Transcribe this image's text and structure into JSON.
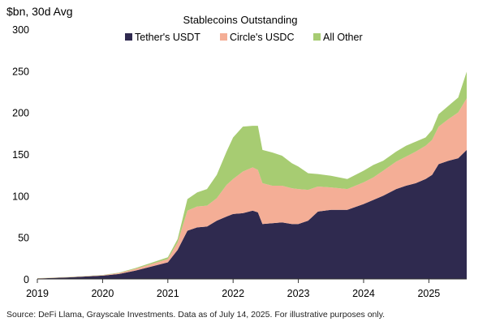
{
  "chart_data": {
    "type": "area",
    "stacked": true,
    "title": "Stablecoins Outstanding",
    "ylabel": "$bn, 30d Avg",
    "xlabel": "",
    "ylim": [
      0,
      300
    ],
    "yticks": [
      0,
      50,
      100,
      150,
      200,
      250,
      300
    ],
    "xlim": [
      2019.0,
      2025.58
    ],
    "xticks": [
      {
        "value": 2019,
        "label": "2019"
      },
      {
        "value": 2020,
        "label": "2020"
      },
      {
        "value": 2021,
        "label": "2021"
      },
      {
        "value": 2022,
        "label": "2022"
      },
      {
        "value": 2023,
        "label": "2023"
      },
      {
        "value": 2024,
        "label": "2024"
      },
      {
        "value": 2025,
        "label": "2025"
      }
    ],
    "grid": false,
    "legend_position": "top",
    "x": [
      2019.0,
      2019.5,
      2020.0,
      2020.25,
      2020.5,
      2020.75,
      2021.0,
      2021.15,
      2021.3,
      2021.45,
      2021.6,
      2021.75,
      2021.9,
      2022.0,
      2022.15,
      2022.3,
      2022.38,
      2022.45,
      2022.6,
      2022.75,
      2022.9,
      2023.0,
      2023.15,
      2023.3,
      2023.5,
      2023.75,
      2024.0,
      2024.15,
      2024.3,
      2024.5,
      2024.65,
      2024.8,
      2024.95,
      2025.05,
      2025.15,
      2025.3,
      2025.45,
      2025.58
    ],
    "series": [
      {
        "name": "Tether's USDT",
        "color": "#2f2a4f",
        "values": [
          0.5,
          2,
          4,
          6,
          10,
          15,
          20,
          35,
          58,
          62,
          63,
          70,
          75,
          78,
          79,
          82,
          80,
          66,
          67,
          68,
          66,
          66,
          70,
          81,
          83,
          83,
          90,
          95,
          100,
          108,
          112,
          115,
          120,
          125,
          138,
          142,
          145,
          155
        ]
      },
      {
        "name": "Circle's USDC",
        "color": "#f4ae96",
        "values": [
          0.2,
          0.3,
          0.5,
          1,
          2,
          3,
          4,
          9,
          24,
          25,
          25,
          27,
          38,
          42,
          50,
          52,
          51,
          49,
          45,
          44,
          43,
          42,
          37,
          30,
          27,
          25,
          26,
          27,
          30,
          33,
          35,
          38,
          40,
          42,
          45,
          50,
          55,
          62
        ]
      },
      {
        "name": "All Other",
        "color": "#a7cc72",
        "values": [
          0.1,
          0.2,
          0.3,
          0.5,
          1,
          1.5,
          2,
          4,
          14,
          17,
          20,
          28,
          40,
          50,
          54,
          50,
          53,
          40,
          40,
          36,
          30,
          27,
          20,
          15,
          14,
          12,
          14,
          15,
          12,
          12,
          13,
          12,
          10,
          12,
          15,
          16,
          18,
          32
        ]
      }
    ],
    "source": "Source: DeFi Llama, Grayscale Investments. Data as of July 14, 2025. For illustrative purposes only."
  }
}
